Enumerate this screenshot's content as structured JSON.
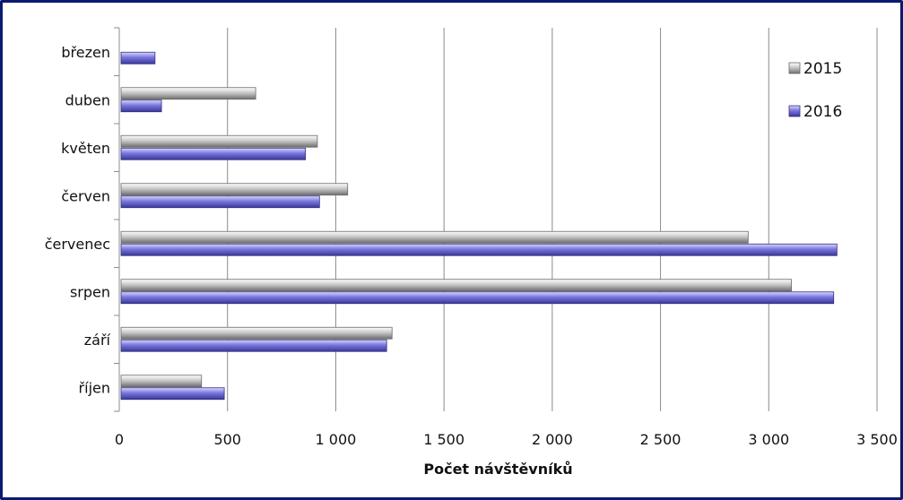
{
  "chart_data": {
    "type": "bar",
    "orientation": "horizontal",
    "categories": [
      "březen",
      "duben",
      "květen",
      "červen",
      "červenec",
      "srpen",
      "září",
      "říjen"
    ],
    "series": [
      {
        "name": "2015",
        "color": "#9a9a9a",
        "values": [
          null,
          630,
          915,
          1055,
          2905,
          3105,
          1260,
          380
        ]
      },
      {
        "name": "2016",
        "color": "#6a66cc",
        "values": [
          165,
          195,
          860,
          925,
          3315,
          3300,
          1235,
          485
        ]
      }
    ],
    "xlabel": "Počet návštěvníků",
    "ylabel": "",
    "xlim": [
      0,
      3500
    ],
    "x_ticks": [
      0,
      500,
      1000,
      1500,
      2000,
      2500,
      3000,
      3500
    ],
    "x_tick_labels": [
      "0",
      "500",
      "1 000",
      "1 500",
      "2 000",
      "2 500",
      "3 000",
      "3 500"
    ],
    "grid": "vertical",
    "legend_position": "top-right"
  }
}
